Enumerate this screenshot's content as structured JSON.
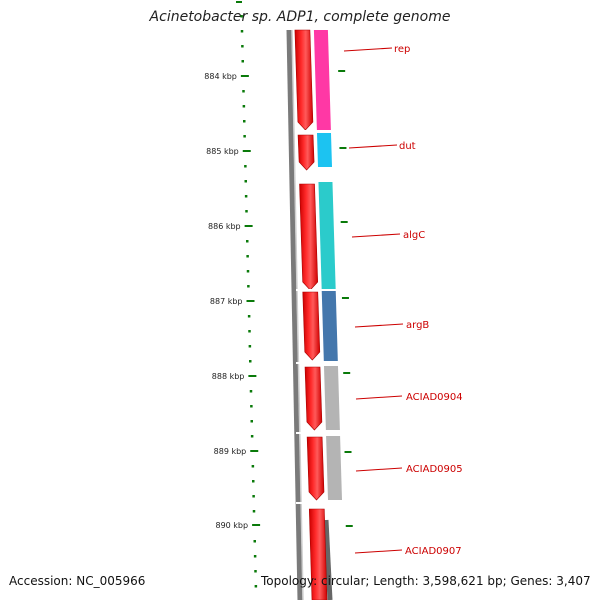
{
  "title": "Acinetobacter sp. ADP1, complete genome",
  "footer": {
    "accession": "Accession: NC_005966",
    "summary": "Topology: circular; Length: 3,598,621 bp; Genes: 3,407"
  },
  "colors": {
    "tick": "#0a7a0a",
    "label": "#cc0000",
    "backbone": "#7a7a7a",
    "forward_cds": "#ff0000"
  },
  "tick_labels": [
    "884 kbp",
    "885 kbp",
    "886 kbp",
    "887 kbp",
    "888 kbp",
    "889 kbp",
    "890 kbp"
  ],
  "genes": [
    {
      "name": "rep",
      "color": "#ff2da0"
    },
    {
      "name": "dut",
      "color": "#10c0f0"
    },
    {
      "name": "algC",
      "color": "#20c8c8"
    },
    {
      "name": "argB",
      "color": "#3a70a8"
    },
    {
      "name": "ACIAD0904",
      "color": "#b0b0b0"
    },
    {
      "name": "ACIAD0905",
      "color": "#b0b0b0"
    },
    {
      "name": "ACIAD0907",
      "color": "#b0b0b0"
    }
  ]
}
